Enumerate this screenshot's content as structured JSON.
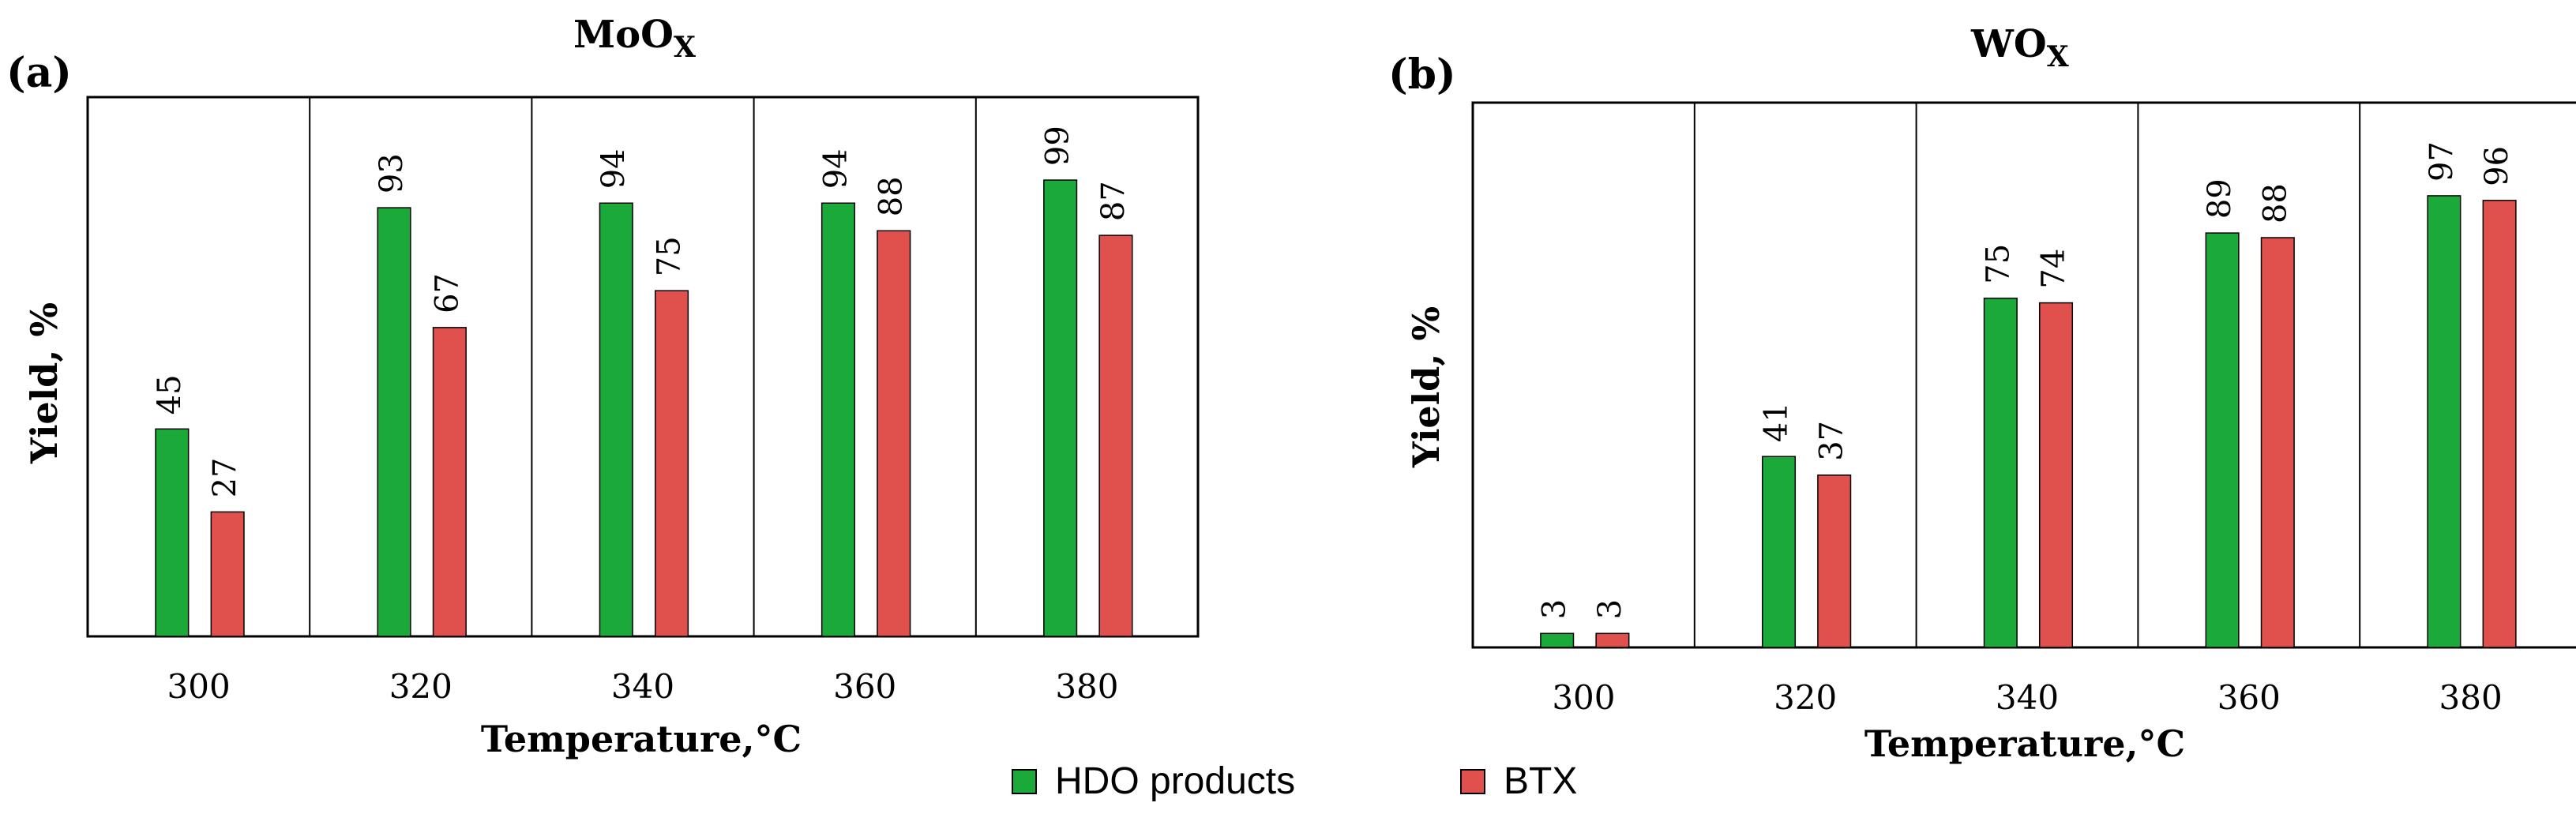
{
  "legend": {
    "items": [
      {
        "name": "HDO products",
        "color": "#1BAA3A"
      },
      {
        "name": "BTX",
        "color": "#E0514D"
      }
    ]
  },
  "chart_data": [
    {
      "type": "bar",
      "panel_label": "(a)",
      "title": "MoO",
      "title_subscript": "X",
      "categories": [
        "300",
        "320",
        "340",
        "360",
        "380"
      ],
      "series": [
        {
          "name": "HDO products",
          "color": "#1BAA3A",
          "values": [
            45,
            93,
            94,
            94,
            99
          ]
        },
        {
          "name": "BTX",
          "color": "#E0514D",
          "values": [
            27,
            67,
            75,
            88,
            87
          ]
        }
      ],
      "xlabel": "Temperature,°C",
      "ylabel": "Yield, %",
      "ylim": [
        0,
        117
      ]
    },
    {
      "type": "bar",
      "panel_label": "(b)",
      "title": "WO",
      "title_subscript": "X",
      "categories": [
        "300",
        "320",
        "340",
        "360",
        "380"
      ],
      "series": [
        {
          "name": "HDO products",
          "color": "#1BAA3A",
          "values": [
            3,
            41,
            75,
            89,
            97
          ]
        },
        {
          "name": "BTX",
          "color": "#E0514D",
          "values": [
            3,
            37,
            74,
            88,
            96
          ]
        }
      ],
      "xlabel": "Temperature,°C",
      "ylabel": "Yield, %",
      "ylim": [
        0,
        117
      ]
    }
  ]
}
